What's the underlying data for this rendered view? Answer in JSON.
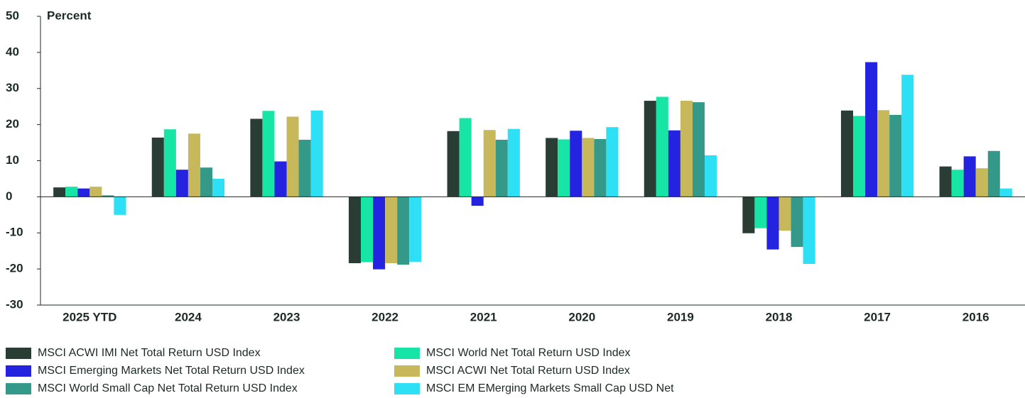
{
  "chart_data": {
    "type": "bar",
    "ylabel": "Percent",
    "categories": [
      "2025 YTD",
      "2024",
      "2023",
      "2022",
      "2021",
      "2020",
      "2019",
      "2018",
      "2017",
      "2016"
    ],
    "series": [
      {
        "name": "MSCI ACWI IMI Net Total Return USD Index",
        "color": "#2a3d35",
        "values": [
          2.6,
          16.4,
          21.6,
          -18.4,
          18.2,
          16.3,
          26.6,
          -10.1,
          23.9,
          8.4
        ]
      },
      {
        "name": "MSCI World Net Total Return USD Index",
        "color": "#17e5a6",
        "values": [
          2.8,
          18.7,
          23.8,
          -18.1,
          21.8,
          15.9,
          27.7,
          -8.7,
          22.4,
          7.5
        ]
      },
      {
        "name": "MSCI Emerging Markets Net Total Return USD Index",
        "color": "#2323e0",
        "values": [
          2.3,
          7.5,
          9.8,
          -20.1,
          -2.5,
          18.3,
          18.4,
          -14.6,
          37.3,
          11.2
        ]
      },
      {
        "name": "MSCI ACWI Net Total Return USD Index",
        "color": "#c8b85c",
        "values": [
          2.8,
          17.5,
          22.2,
          -18.4,
          18.5,
          16.3,
          26.6,
          -9.4,
          24.0,
          7.9
        ]
      },
      {
        "name": "MSCI World Small Cap Net Total Return USD Index",
        "color": "#35998a",
        "values": [
          0.4,
          8.1,
          15.8,
          -18.8,
          15.8,
          16.0,
          26.2,
          -13.9,
          22.7,
          12.7
        ]
      },
      {
        "name": "MSCI EM EMerging Markets Small Cap USD Net",
        "color": "#2ee0f5",
        "values": [
          -5.0,
          5.0,
          23.9,
          -18.0,
          18.8,
          19.3,
          11.5,
          -18.6,
          33.8,
          2.3
        ]
      }
    ],
    "ylim": [
      -30,
      50
    ],
    "yticks": [
      -30,
      -20,
      -10,
      0,
      10,
      20,
      30,
      40,
      50
    ]
  }
}
